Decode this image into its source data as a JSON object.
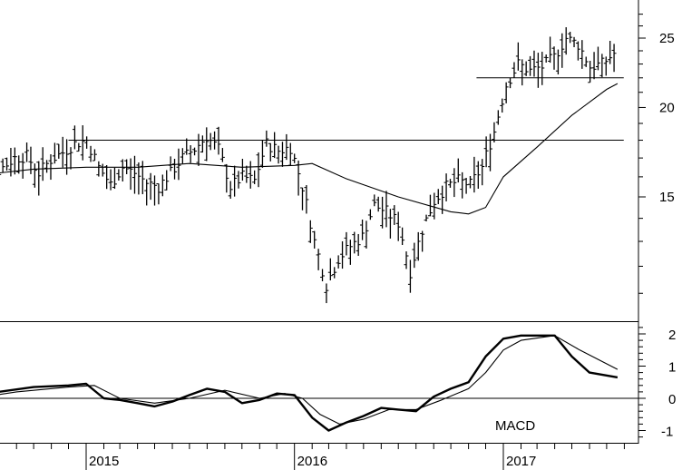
{
  "chart_data": [
    {
      "type": "ohlc",
      "ylim": [
        9.5,
        28
      ],
      "scale": "log",
      "y_ticks": [
        {
          "value": 15,
          "label": "15"
        },
        {
          "value": 20,
          "label": "20"
        },
        {
          "value": 25,
          "label": "25"
        }
      ],
      "x_labels": [
        {
          "value": "2015-01-01",
          "label": "2015"
        },
        {
          "value": "2016-01-01",
          "label": "2016"
        },
        {
          "value": "2017-01-01",
          "label": "2017"
        }
      ],
      "x_range": [
        "2014-06-01",
        "2017-07-31"
      ],
      "weekly_close": [
        [
          "2014-06-06",
          14.9
        ],
        [
          "2014-06-27",
          15.3
        ],
        [
          "2014-07-18",
          16.0
        ],
        [
          "2014-08-08",
          16.5
        ],
        [
          "2014-08-29",
          17.0
        ],
        [
          "2014-09-19",
          17.1
        ],
        [
          "2014-10-10",
          16.2
        ],
        [
          "2014-10-31",
          16.9
        ],
        [
          "2014-11-21",
          17.3
        ],
        [
          "2014-12-12",
          17.8
        ],
        [
          "2015-01-02",
          18.0
        ],
        [
          "2015-01-23",
          16.5
        ],
        [
          "2015-02-13",
          15.6
        ],
        [
          "2015-03-06",
          16.5
        ],
        [
          "2015-03-27",
          16.2
        ],
        [
          "2015-04-17",
          15.7
        ],
        [
          "2015-05-08",
          15.5
        ],
        [
          "2015-05-29",
          16.2
        ],
        [
          "2015-06-19",
          17.0
        ],
        [
          "2015-07-10",
          17.5
        ],
        [
          "2015-07-31",
          18.2
        ],
        [
          "2015-08-21",
          17.5
        ],
        [
          "2015-09-11",
          15.5
        ],
        [
          "2015-10-02",
          16.0
        ],
        [
          "2015-10-23",
          15.8
        ],
        [
          "2015-11-13",
          17.8
        ],
        [
          "2015-12-04",
          17.4
        ],
        [
          "2015-12-25",
          17.6
        ],
        [
          "2016-01-15",
          15.5
        ],
        [
          "2016-02-05",
          13.0
        ],
        [
          "2016-02-26",
          11.3
        ],
        [
          "2016-03-18",
          12.3
        ],
        [
          "2016-04-08",
          12.8
        ],
        [
          "2016-04-29",
          13.2
        ],
        [
          "2016-05-20",
          14.6
        ],
        [
          "2016-06-10",
          14.3
        ],
        [
          "2016-07-01",
          13.8
        ],
        [
          "2016-07-22",
          11.8
        ],
        [
          "2016-08-12",
          13.5
        ],
        [
          "2016-09-02",
          14.8
        ],
        [
          "2016-09-23",
          15.5
        ],
        [
          "2016-10-14",
          15.8
        ],
        [
          "2016-11-04",
          15.6
        ],
        [
          "2016-11-25",
          16.5
        ],
        [
          "2016-12-16",
          18.5
        ],
        [
          "2017-01-06",
          21.5
        ],
        [
          "2017-01-27",
          23.0
        ],
        [
          "2017-02-17",
          22.5
        ],
        [
          "2017-03-10",
          22.8
        ],
        [
          "2017-03-31",
          23.5
        ],
        [
          "2017-04-21",
          25.0
        ],
        [
          "2017-05-12",
          24.5
        ],
        [
          "2017-06-02",
          22.8
        ],
        [
          "2017-06-23",
          23.0
        ],
        [
          "2017-07-14",
          23.8
        ]
      ],
      "moving_average": [
        [
          "2014-06-01",
          16.0
        ],
        [
          "2014-10-01",
          16.4
        ],
        [
          "2015-01-01",
          16.5
        ],
        [
          "2015-04-01",
          16.5
        ],
        [
          "2015-07-01",
          16.7
        ],
        [
          "2015-10-01",
          16.5
        ],
        [
          "2016-01-01",
          16.6
        ],
        [
          "2016-02-01",
          16.7
        ],
        [
          "2016-04-01",
          15.9
        ],
        [
          "2016-07-01",
          15.0
        ],
        [
          "2016-10-01",
          14.3
        ],
        [
          "2016-11-01",
          14.2
        ],
        [
          "2016-12-01",
          14.5
        ],
        [
          "2017-01-01",
          16.0
        ],
        [
          "2017-03-01",
          17.6
        ],
        [
          "2017-05-01",
          19.5
        ],
        [
          "2017-07-01",
          21.2
        ],
        [
          "2017-07-20",
          21.6
        ]
      ],
      "horizontal_lines": [
        {
          "value": 22.0,
          "from": "2016-11-15",
          "to": "2017-07-31"
        },
        {
          "value": 18.0,
          "from": "2014-12-01",
          "to": "2017-07-31"
        }
      ]
    },
    {
      "type": "line",
      "label": "MACD",
      "ylim": [
        -1.3,
        2.4
      ],
      "y_ticks": [
        {
          "value": 2,
          "label": "2"
        },
        {
          "value": 1,
          "label": "1"
        },
        {
          "value": 0,
          "label": "0"
        },
        {
          "value": -1,
          "label": "-1"
        }
      ],
      "zero_line": true,
      "series": [
        {
          "style": "thick",
          "points": [
            [
              "2014-06-01",
              -0.1
            ],
            [
              "2014-08-01",
              0.2
            ],
            [
              "2014-10-01",
              0.35
            ],
            [
              "2014-12-01",
              0.4
            ],
            [
              "2015-01-01",
              0.45
            ],
            [
              "2015-02-01",
              0.0
            ],
            [
              "2015-03-01",
              -0.05
            ],
            [
              "2015-04-01",
              -0.15
            ],
            [
              "2015-05-01",
              -0.25
            ],
            [
              "2015-06-01",
              -0.1
            ],
            [
              "2015-07-01",
              0.1
            ],
            [
              "2015-08-01",
              0.3
            ],
            [
              "2015-09-01",
              0.2
            ],
            [
              "2015-10-01",
              -0.15
            ],
            [
              "2015-11-01",
              -0.05
            ],
            [
              "2015-12-01",
              0.15
            ],
            [
              "2016-01-01",
              0.1
            ],
            [
              "2016-02-01",
              -0.6
            ],
            [
              "2016-03-01",
              -1.0
            ],
            [
              "2016-04-01",
              -0.75
            ],
            [
              "2016-05-01",
              -0.55
            ],
            [
              "2016-06-01",
              -0.3
            ],
            [
              "2016-07-01",
              -0.35
            ],
            [
              "2016-08-01",
              -0.4
            ],
            [
              "2016-09-01",
              0.05
            ],
            [
              "2016-10-01",
              0.3
            ],
            [
              "2016-11-01",
              0.5
            ],
            [
              "2016-12-01",
              1.3
            ],
            [
              "2017-01-01",
              1.85
            ],
            [
              "2017-02-01",
              1.95
            ],
            [
              "2017-03-01",
              1.95
            ],
            [
              "2017-04-01",
              1.95
            ],
            [
              "2017-05-01",
              1.3
            ],
            [
              "2017-06-01",
              0.8
            ],
            [
              "2017-07-20",
              0.65
            ]
          ]
        },
        {
          "style": "thin",
          "points": [
            [
              "2014-06-01",
              -0.05
            ],
            [
              "2014-09-01",
              0.2
            ],
            [
              "2014-12-01",
              0.35
            ],
            [
              "2015-01-15",
              0.4
            ],
            [
              "2015-03-01",
              0.0
            ],
            [
              "2015-05-01",
              -0.15
            ],
            [
              "2015-07-01",
              0.0
            ],
            [
              "2015-09-01",
              0.25
            ],
            [
              "2015-11-01",
              0.0
            ],
            [
              "2015-12-15",
              0.15
            ],
            [
              "2016-01-15",
              0.0
            ],
            [
              "2016-02-15",
              -0.5
            ],
            [
              "2016-03-20",
              -0.8
            ],
            [
              "2016-05-01",
              -0.65
            ],
            [
              "2016-06-15",
              -0.35
            ],
            [
              "2016-08-01",
              -0.35
            ],
            [
              "2016-09-15",
              -0.05
            ],
            [
              "2016-11-01",
              0.3
            ],
            [
              "2016-12-01",
              0.8
            ],
            [
              "2017-01-01",
              1.5
            ],
            [
              "2017-02-01",
              1.8
            ],
            [
              "2017-04-01",
              1.95
            ],
            [
              "2017-05-15",
              1.5
            ],
            [
              "2017-07-20",
              0.9
            ]
          ]
        }
      ]
    }
  ]
}
